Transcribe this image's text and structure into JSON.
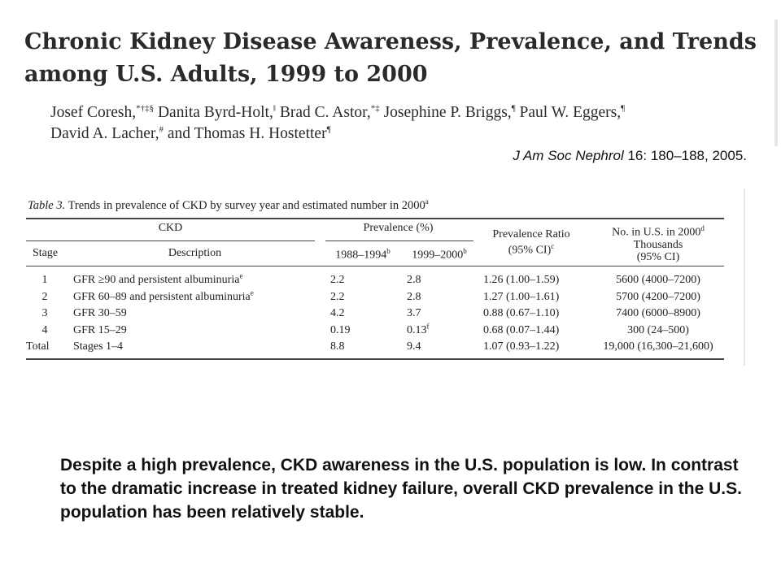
{
  "paper": {
    "title_line1": "Chronic Kidney Disease Awareness, Prevalence, and Trends",
    "title_line2": "among U.S. Adults, 1999 to 2000",
    "authors_line1": [
      {
        "name": "Josef Coresh,",
        "sup": "*†‡§"
      },
      {
        "name": " Danita Byrd-Holt,",
        "sup": "‖"
      },
      {
        "name": " Brad C. Astor,",
        "sup": "*‡"
      },
      {
        "name": " Josephine P. Briggs,",
        "sup": "¶"
      },
      {
        "name": " Paul W. Eggers,",
        "sup": "¶"
      }
    ],
    "authors_line2": [
      {
        "name": "David A. Lacher,",
        "sup": "#"
      },
      {
        "name": " and Thomas H. Hostetter",
        "sup": "¶"
      }
    ],
    "citation_journal": "J Am Soc Nephrol",
    "citation_rest": " 16: 180–188, 2005."
  },
  "table": {
    "caption_label": "Table 3.",
    "caption_text": " Trends in prevalence of CKD by survey year and estimated number in 2000",
    "caption_sup": "a",
    "headers": {
      "ckd": "CKD",
      "stage": "Stage",
      "description": "Description",
      "prevalence": "Prevalence (%)",
      "period1": "1988–1994",
      "period1_sup": "b",
      "period2": "1999–2000",
      "period2_sup": "b",
      "ratio_line1": "Prevalence Ratio",
      "ratio_line2": "(95% CI)",
      "ratio_sup": "c",
      "number_line1": "No. in U.S. in 2000",
      "number_sup": "d",
      "number_line2": "Thousands",
      "number_line3": "(95% CI)"
    },
    "rows": [
      {
        "stage": "1",
        "description": "GFR ≥90 and persistent albuminuria",
        "desc_sup": "e",
        "p1": "2.2",
        "p2": "2.8",
        "p2_sup": "",
        "ratio": "1.26 (1.00–1.59)",
        "number": "5600 (4000–7200)"
      },
      {
        "stage": "2",
        "description": "GFR 60–89 and persistent albuminuria",
        "desc_sup": "e",
        "p1": "2.2",
        "p2": "2.8",
        "p2_sup": "",
        "ratio": "1.27 (1.00–1.61)",
        "number": "5700 (4200–7200)"
      },
      {
        "stage": "3",
        "description": "GFR 30–59",
        "desc_sup": "",
        "p1": "4.2",
        "p2": "3.7",
        "p2_sup": "",
        "ratio": "0.88 (0.67–1.10)",
        "number": "7400 (6000–8900)"
      },
      {
        "stage": "4",
        "description": "GFR 15–29",
        "desc_sup": "",
        "p1": "0.19",
        "p2": "0.13",
        "p2_sup": "f",
        "ratio": "0.68 (0.07–1.44)",
        "number": "300 (24–500)"
      },
      {
        "stage": "Total",
        "description": "Stages 1–4",
        "desc_sup": "",
        "p1": "8.8",
        "p2": "9.4",
        "p2_sup": "",
        "ratio": "1.07 (0.93–1.22)",
        "number": "19,000 (16,300–21,600)"
      }
    ]
  },
  "summary": {
    "text": "Despite a high prevalence, CKD awareness in the U.S. population is low. In contrast to the dramatic increase in treated kidney failure, overall CKD prevalence in the U.S. population has been relatively stable."
  }
}
